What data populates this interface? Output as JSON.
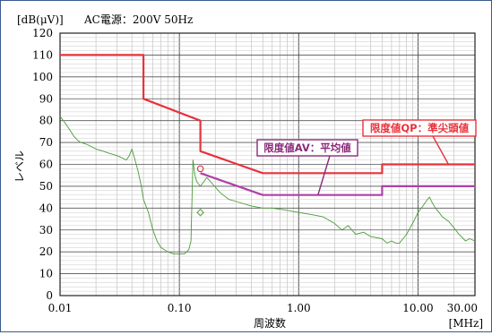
{
  "chart_data": {
    "type": "line",
    "title": "",
    "unit_label": "[dB(μV)]",
    "condition": "AC電源：200V 50Hz",
    "xlabel": "周波数",
    "xunit": "[MHz]",
    "ylabel": "レベル",
    "xscale": "log",
    "xlim": [
      0.01,
      30
    ],
    "ylim": [
      0,
      120
    ],
    "grid": true,
    "y_ticks": [
      0,
      10,
      20,
      30,
      40,
      50,
      60,
      70,
      80,
      90,
      100,
      110,
      120
    ],
    "x_ticks": [
      {
        "v": 0.01,
        "label": "0.01"
      },
      {
        "v": 0.1,
        "label": "0.10"
      },
      {
        "v": 1,
        "label": "1.00"
      },
      {
        "v": 10,
        "label": "10.00"
      },
      {
        "v": 30,
        "label": "30.00"
      }
    ],
    "series": [
      {
        "name": "限度値QP：準尖頭値",
        "color": "#e8323c",
        "points": [
          [
            0.01,
            110
          ],
          [
            0.05,
            110
          ],
          [
            0.05,
            90
          ],
          [
            0.15,
            80
          ],
          [
            0.15,
            66
          ],
          [
            0.5,
            56
          ],
          [
            5,
            56
          ],
          [
            5,
            60
          ],
          [
            30,
            60
          ]
        ]
      },
      {
        "name": "限度値AV：平均値",
        "color": "#b040a8",
        "points": [
          [
            0.15,
            56
          ],
          [
            0.5,
            46
          ],
          [
            5,
            46
          ],
          [
            5,
            50
          ],
          [
            30,
            50
          ]
        ]
      },
      {
        "name": "",
        "color": "#4c9a3a",
        "points": [
          [
            0.01,
            82
          ],
          [
            0.011,
            79
          ],
          [
            0.012,
            76
          ],
          [
            0.013,
            73
          ],
          [
            0.014,
            71
          ],
          [
            0.015,
            70
          ],
          [
            0.017,
            69
          ],
          [
            0.02,
            67
          ],
          [
            0.023,
            66
          ],
          [
            0.026,
            65
          ],
          [
            0.03,
            64
          ],
          [
            0.033,
            63
          ],
          [
            0.036,
            62
          ],
          [
            0.038,
            64
          ],
          [
            0.04,
            67
          ],
          [
            0.042,
            63
          ],
          [
            0.045,
            57
          ],
          [
            0.048,
            50
          ],
          [
            0.05,
            44
          ],
          [
            0.055,
            38
          ],
          [
            0.06,
            30
          ],
          [
            0.065,
            25
          ],
          [
            0.07,
            22
          ],
          [
            0.08,
            20
          ],
          [
            0.09,
            19
          ],
          [
            0.1,
            19
          ],
          [
            0.11,
            19
          ],
          [
            0.12,
            21
          ],
          [
            0.125,
            25
          ],
          [
            0.13,
            62
          ],
          [
            0.135,
            55
          ],
          [
            0.14,
            52
          ],
          [
            0.15,
            50
          ],
          [
            0.16,
            52
          ],
          [
            0.17,
            54
          ],
          [
            0.19,
            51
          ],
          [
            0.22,
            47
          ],
          [
            0.26,
            44
          ],
          [
            0.3,
            43
          ],
          [
            0.4,
            41
          ],
          [
            0.5,
            40
          ],
          [
            0.6,
            40
          ],
          [
            0.8,
            39
          ],
          [
            1,
            38
          ],
          [
            1.3,
            37
          ],
          [
            1.6,
            36
          ],
          [
            2,
            33
          ],
          [
            2.3,
            30
          ],
          [
            2.6,
            32
          ],
          [
            3,
            28
          ],
          [
            3.5,
            29
          ],
          [
            4,
            27
          ],
          [
            5,
            26
          ],
          [
            5.5,
            24
          ],
          [
            6,
            25
          ],
          [
            6.5,
            24
          ],
          [
            7,
            24
          ],
          [
            8,
            28
          ],
          [
            9,
            33
          ],
          [
            10,
            38
          ],
          [
            11,
            41
          ],
          [
            12,
            44
          ],
          [
            12.5,
            45
          ],
          [
            13,
            43
          ],
          [
            14,
            40
          ],
          [
            15,
            38
          ],
          [
            16,
            36
          ],
          [
            18,
            34
          ],
          [
            20,
            31
          ],
          [
            22,
            28
          ],
          [
            25,
            25
          ],
          [
            27,
            26
          ],
          [
            30,
            25
          ]
        ]
      }
    ],
    "markers": [
      {
        "name": "qp-measure",
        "x": 0.15,
        "y": 58,
        "shape": "circle",
        "color": "#d04040"
      },
      {
        "name": "av-measure",
        "x": 0.15,
        "y": 38,
        "shape": "diamond",
        "color": "#6aa84f"
      }
    ],
    "annotations": [
      {
        "text": "限度値QP：準尖頭値",
        "color": "#e8323c",
        "target": [
          18,
          60
        ]
      },
      {
        "text": "限度値AV：平均値",
        "color": "#8a2a7a",
        "target": [
          1.45,
          46
        ]
      }
    ]
  }
}
